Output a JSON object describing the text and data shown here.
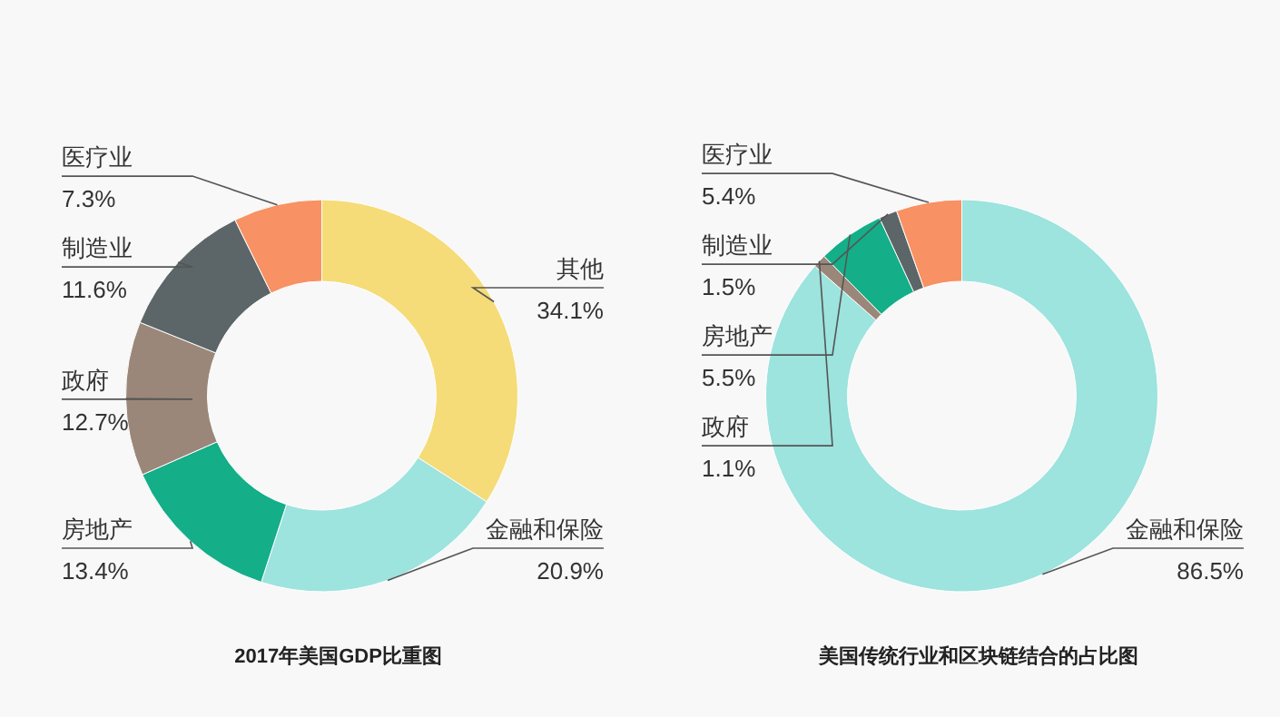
{
  "chart_data": [
    {
      "type": "donut",
      "annotations": [
        "2017年美国GDP比重图"
      ],
      "categories": [
        "其他",
        "金融和保险",
        "房地产",
        "政府",
        "制造业",
        "医疗业"
      ],
      "values": [
        34.1,
        20.9,
        13.4,
        12.7,
        11.6,
        7.3
      ],
      "colors": [
        "#f5dc78",
        "#9de3de",
        "#14ae88",
        "#9b8779",
        "#5c6669",
        "#f89163"
      ],
      "value_labels": [
        "34.1%",
        "20.9%",
        "13.4%",
        "12.7%",
        "11.6%",
        "7.3%"
      ]
    },
    {
      "type": "donut",
      "annotations": [
        "美国传统行业和区块链结合的占比图"
      ],
      "categories": [
        "金融和保险",
        "政府",
        "房地产",
        "制造业",
        "医疗业"
      ],
      "values": [
        86.5,
        1.1,
        5.5,
        1.5,
        5.4
      ],
      "colors": [
        "#9de3de",
        "#9b8779",
        "#14ae88",
        "#5c6669",
        "#f89163"
      ],
      "value_labels": [
        "86.5%",
        "1.1%",
        "5.5%",
        "1.5%",
        "5.4%"
      ]
    }
  ]
}
